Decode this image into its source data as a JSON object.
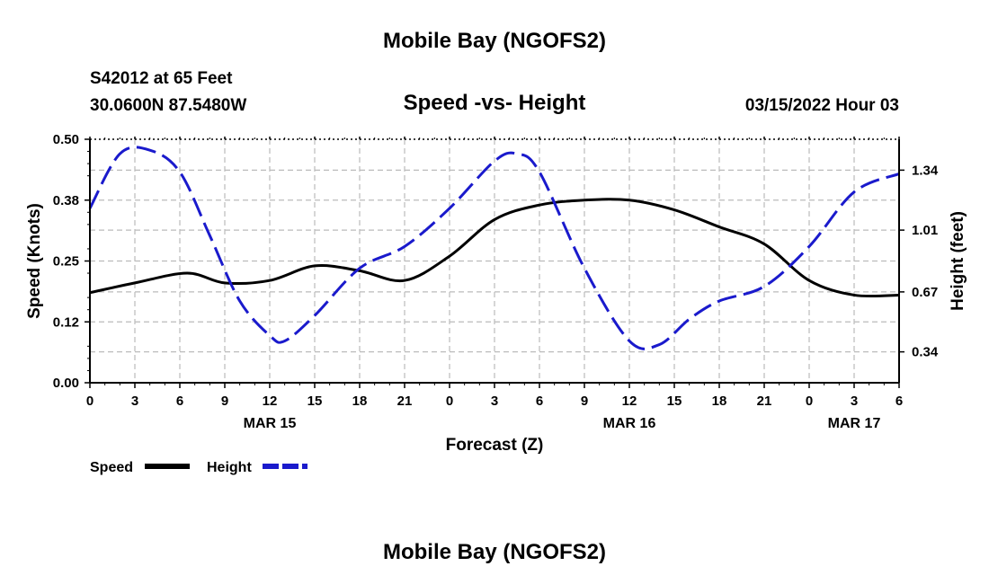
{
  "header": {
    "title": "Mobile Bay (NGOFS2)",
    "station": "S42012 at 65 Feet",
    "location": "30.0600N  87.5480W",
    "subtitle": "Speed -vs- Height",
    "datetime": "03/15/2022 Hour 03"
  },
  "footer": {
    "title": "Mobile Bay (NGOFS2)"
  },
  "chart_data": {
    "type": "line",
    "title": "Speed -vs- Height",
    "xlabel": "Forecast (Z)",
    "ylabel": "Speed (Knots)",
    "y2label": "Height (feet)",
    "x_unit_hours": "forecast hours from MAR 15 00Z",
    "xlim": [
      0,
      54
    ],
    "ylim": [
      0,
      0.5
    ],
    "y2lim": [
      0.17,
      1.51
    ],
    "grid": true,
    "legend_placement": "bottom-left",
    "x_ticks": [
      0,
      3,
      6,
      9,
      12,
      15,
      18,
      21,
      24,
      27,
      30,
      33,
      36,
      39,
      42,
      45,
      48,
      51,
      54
    ],
    "x_tick_labels": [
      "0",
      "3",
      "6",
      "9",
      "12",
      "15",
      "18",
      "21",
      "0",
      "3",
      "6",
      "9",
      "12",
      "15",
      "18",
      "21",
      "0",
      "3",
      "6"
    ],
    "date_labels": [
      {
        "x": 12,
        "label": "MAR 15"
      },
      {
        "x": 36,
        "label": "MAR 16"
      },
      {
        "x": 51,
        "label": "MAR 17"
      }
    ],
    "y_ticks": [
      0.0,
      0.125,
      0.25,
      0.375,
      0.5
    ],
    "y_tick_labels": [
      "0.00",
      "0.12",
      "0.25",
      "0.38",
      "0.50"
    ],
    "y2_ticks": [
      0.34,
      0.67,
      1.01,
      1.34
    ],
    "y2_tick_labels": [
      "0.34",
      "0.67",
      "1.01",
      "1.34"
    ],
    "series": [
      {
        "name": "Speed",
        "axis": "left",
        "color": "#000000",
        "style": "solid",
        "x": [
          0,
          3,
          6.5,
          9,
          12,
          15,
          18,
          21,
          24,
          27,
          30,
          33,
          36,
          39,
          42,
          45,
          48,
          51,
          54
        ],
        "y": [
          0.185,
          0.205,
          0.225,
          0.205,
          0.21,
          0.24,
          0.23,
          0.21,
          0.26,
          0.335,
          0.365,
          0.375,
          0.375,
          0.355,
          0.32,
          0.285,
          0.21,
          0.18,
          0.18
        ]
      },
      {
        "name": "Height",
        "axis": "right",
        "color": "#1a1acc",
        "style": "dashed",
        "x": [
          0,
          2,
          4,
          6,
          8,
          10,
          12,
          13,
          15,
          18,
          21,
          24,
          27,
          28.5,
          30,
          33,
          36,
          38,
          40,
          42,
          45,
          48,
          51,
          54
        ],
        "y": [
          1.13,
          1.43,
          1.45,
          1.33,
          0.98,
          0.62,
          0.43,
          0.4,
          0.54,
          0.8,
          0.92,
          1.13,
          1.39,
          1.43,
          1.33,
          0.8,
          0.4,
          0.38,
          0.52,
          0.62,
          0.7,
          0.92,
          1.22,
          1.32
        ]
      }
    ]
  }
}
